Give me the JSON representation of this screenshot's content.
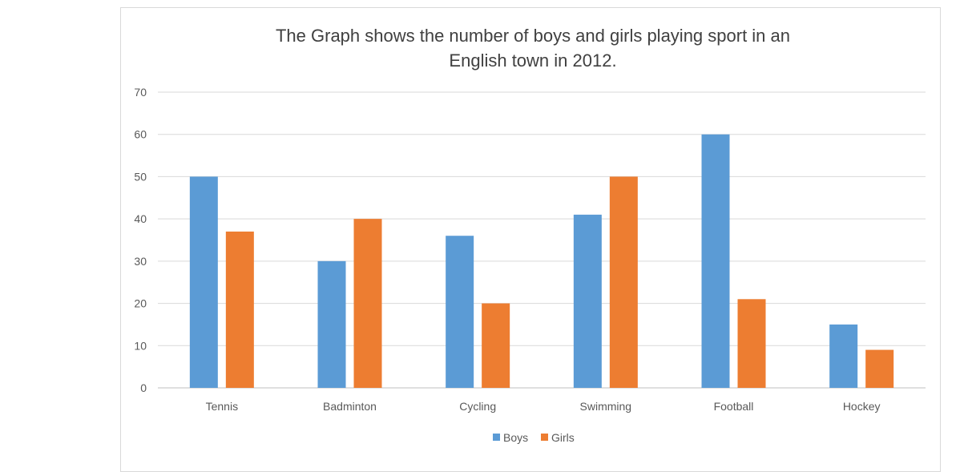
{
  "chart_data": {
    "type": "bar",
    "title": "The Graph shows the number of boys and girls playing sport in an English town in 2012.",
    "title_lines": [
      "The Graph shows the number of boys and girls playing sport in an",
      "English town in 2012."
    ],
    "categories": [
      "Tennis",
      "Badminton",
      "Cycling",
      "Swimming",
      "Football",
      "Hockey"
    ],
    "series": [
      {
        "name": "Boys",
        "color": "#5b9bd5",
        "values": [
          50,
          30,
          36,
          41,
          60,
          15
        ]
      },
      {
        "name": "Girls",
        "color": "#ed7d31",
        "values": [
          37,
          40,
          20,
          50,
          21,
          9
        ]
      }
    ],
    "ylim": [
      0,
      70
    ],
    "yticks": [
      "0",
      "10",
      "20",
      "30",
      "40",
      "50",
      "60",
      "70"
    ],
    "xlabel": "",
    "ylabel": "",
    "grid": true,
    "legend_position": "bottom"
  }
}
